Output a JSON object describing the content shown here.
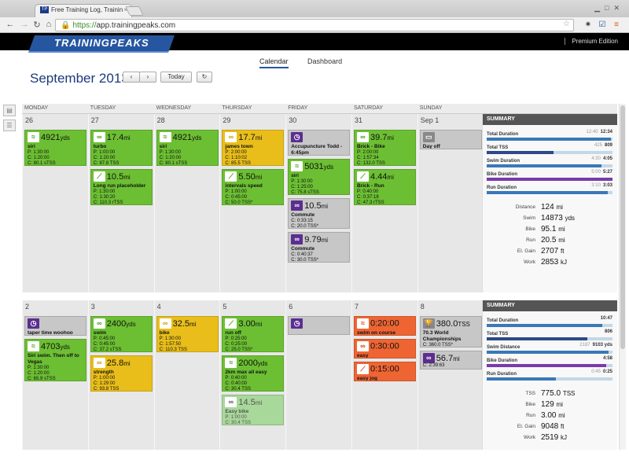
{
  "browser": {
    "tab_title": "Free Training Log, Trainin",
    "url_scheme": "https://",
    "url_host": "app.trainingpeaks.com"
  },
  "app": {
    "logo": "TRAININGPEAKS",
    "edition": "Premium Edition",
    "views": [
      "Calendar",
      "Dashboard"
    ],
    "month": "September",
    "year": "2013",
    "today_label": "Today"
  },
  "day_names": [
    "MONDAY",
    "TUESDAY",
    "WEDNESDAY",
    "THURSDAY",
    "FRIDAY",
    "SATURDAY",
    "SUNDAY"
  ],
  "weeks": [
    {
      "dates": [
        "26",
        "27",
        "28",
        "29",
        "30",
        "31",
        "Sep 1"
      ],
      "days": [
        [
          {
            "color": "green",
            "icon": "swim",
            "value": "4921",
            "unit": "yds",
            "title": "siri",
            "lines": [
              "P: 1:30:00",
              "C: 1:20:00",
              "C: 80.1 sTSS"
            ]
          }
        ],
        [
          {
            "color": "green",
            "icon": "bike",
            "value": "17.4",
            "unit": "mi",
            "title": "turbo",
            "lines": [
              "P: 1:00:00",
              "C: 1:20:00",
              "C: 87.8 TSS"
            ]
          },
          {
            "color": "green",
            "icon": "run",
            "value": "10.5",
            "unit": "mi",
            "title": "Long run placeholder",
            "lines": [
              "P: 1:30:00",
              "C: 1:30:20",
              "C: 110.3 rTSS"
            ]
          }
        ],
        [
          {
            "color": "green",
            "icon": "swim",
            "value": "4921",
            "unit": "yds",
            "title": "siri",
            "lines": [
              "P: 1:30:00",
              "C: 1:20:00",
              "C: 80.1 sTSS"
            ]
          }
        ],
        [
          {
            "color": "yellow",
            "icon": "bike",
            "value": "17.7",
            "unit": "mi",
            "title": "james town",
            "lines": [
              "P: 2:00:00",
              "C: 1:10:02",
              "C: 85.5 TSS"
            ]
          },
          {
            "color": "green",
            "icon": "run",
            "value": "5.50",
            "unit": "mi",
            "title": "intervals speed",
            "lines": [
              "P: 1:00:00",
              "C: 0:45:00",
              "C: 50.0 TSS*"
            ]
          }
        ],
        [
          {
            "color": "gray",
            "icon": "other",
            "value": "",
            "unit": "",
            "title": "Accupuncture Todd - 6:45pm",
            "lines": []
          },
          {
            "color": "green",
            "icon": "swim",
            "value": "5031",
            "unit": "yds",
            "title": "siri",
            "lines": [
              "P: 1:30:00",
              "C: 1:25:00",
              "C: 75.8 sTSS"
            ]
          },
          {
            "color": "gray",
            "icon": "commute",
            "value": "10.5",
            "unit": "mi",
            "title": "Commute",
            "lines": [
              "C: 0:33:15",
              "C: 20.0 TSS*"
            ]
          },
          {
            "color": "gray",
            "icon": "commute",
            "value": "9.79",
            "unit": "mi",
            "title": "Commute",
            "lines": [
              "C: 0:40:37",
              "C: 30.0 TSS*"
            ]
          }
        ],
        [
          {
            "color": "green",
            "icon": "bike",
            "value": "39.7",
            "unit": "mi",
            "title": "Brick - Bike",
            "lines": [
              "P: 2:00:00",
              "C: 1:57:34",
              "C: 132.0 TSS"
            ]
          },
          {
            "color": "green",
            "icon": "run",
            "value": "4.44",
            "unit": "mi",
            "title": "Brick - Run",
            "lines": [
              "P: 0:40:00",
              "C: 0:37:18",
              "C: 47.3 rTSS"
            ]
          }
        ],
        [
          {
            "color": "gray",
            "icon": "dayoff",
            "value": "",
            "unit": "",
            "title": "Day off",
            "lines": []
          }
        ]
      ],
      "summary": {
        "header": "SUMMARY",
        "rows": [
          {
            "label": "Total Duration",
            "sub": "12:40",
            "val": "12:34",
            "fill": 0.99,
            "color": "#3a78b8"
          },
          {
            "label": "Total TSS",
            "sub": "425",
            "val": "809",
            "fill": 0.53,
            "color": "#2c4a88"
          },
          {
            "label": "Swim Duration",
            "sub": "4:30",
            "val": "4:05",
            "fill": 0.91,
            "color": "#3a78b8"
          },
          {
            "label": "Bike Duration",
            "sub": "5:00",
            "val": "5:27",
            "fill": 1.0,
            "color": "#7a3aaa"
          },
          {
            "label": "Run Duration",
            "sub": "3:10",
            "val": "3:03",
            "fill": 0.96,
            "color": "#3a78b8"
          }
        ],
        "stats": [
          {
            "k": "Distance",
            "v": "124",
            "u": "mi"
          },
          {
            "k": "Swim",
            "v": "14873",
            "u": "yds"
          },
          {
            "k": "Bike",
            "v": "95.1",
            "u": "mi"
          },
          {
            "k": "Run",
            "v": "20.5",
            "u": "mi"
          },
          {
            "k": "El. Gain",
            "v": "2707",
            "u": "ft"
          },
          {
            "k": "Work",
            "v": "2853",
            "u": "kJ"
          }
        ]
      }
    },
    {
      "dates": [
        "2",
        "3",
        "4",
        "5",
        "6",
        "7",
        "8"
      ],
      "days": [
        [
          {
            "color": "gray",
            "icon": "other",
            "value": "",
            "unit": "",
            "title": "taper time woohoo",
            "lines": []
          },
          {
            "color": "green",
            "icon": "swim",
            "value": "4703",
            "unit": "yds",
            "title": "Siri swim. Then off to Vegas",
            "lines": [
              "P: 1:30:00",
              "C: 1:20:00",
              "C: 65.9 sTSS"
            ]
          }
        ],
        [
          {
            "color": "green",
            "icon": "bike",
            "value": "2400",
            "unit": "yds",
            "title": "swim",
            "lines": [
              "P: 0:45:00",
              "C: 0:45:00",
              "C: 37.2 sTSS"
            ]
          },
          {
            "color": "yellow",
            "icon": "bike",
            "value": "25.8",
            "unit": "mi",
            "title": "strength",
            "lines": [
              "P: 1:00:00",
              "C: 1:29:00",
              "C: 93.8 TSS"
            ]
          }
        ],
        [
          {
            "color": "yellow",
            "icon": "bike",
            "value": "32.5",
            "unit": "mi",
            "title": "bike",
            "lines": [
              "P: 1:30:00",
              "C: 1:57:50",
              "C: 110.3 TSS"
            ]
          }
        ],
        [
          {
            "color": "green",
            "icon": "run",
            "value": "3.00",
            "unit": "mi",
            "title": "run off",
            "lines": [
              "P: 0:25:00",
              "C: 0:25:00",
              "C: 25.0 TSS*"
            ]
          },
          {
            "color": "green",
            "icon": "swim",
            "value": "2000",
            "unit": "yds",
            "title": "2km max all easy",
            "lines": [
              "P: 0:40:00",
              "C: 0:40:00",
              "C: 30.4 TSS"
            ]
          },
          {
            "color": "fadegreen",
            "icon": "bike",
            "value": "14.5",
            "unit": "mi",
            "title": "Easy bike",
            "lines": [
              "P: 1:00:00",
              "C: 30.4 TSS"
            ]
          }
        ],
        [
          {
            "color": "gray",
            "icon": "other",
            "value": "",
            "unit": "",
            "title": "",
            "lines": []
          }
        ],
        [
          {
            "color": "orange",
            "icon": "swim",
            "value": "0:20:00",
            "unit": "",
            "title": "swim on course",
            "lines": []
          },
          {
            "color": "orange",
            "icon": "bike",
            "value": "0:30:00",
            "unit": "",
            "title": "easy",
            "lines": []
          },
          {
            "color": "orange",
            "icon": "run",
            "value": "0:15:00",
            "unit": "",
            "title": "easy jog",
            "lines": []
          }
        ],
        [
          {
            "color": "gray",
            "icon": "race",
            "value": "380.0",
            "unit": "TSS",
            "title": "70.3 World Championships",
            "lines": [
              "C: 360.0 TSS*"
            ]
          },
          {
            "color": "gray",
            "icon": "commute",
            "value": "56.7",
            "unit": "mi",
            "title": "",
            "lines": [
              "C: 2:39:63"
            ]
          }
        ]
      ],
      "summary": {
        "header": "SUMMARY",
        "rows": [
          {
            "label": "Total Duration",
            "sub": "",
            "val": "10:47",
            "fill": 0.92,
            "color": "#3a78b8"
          },
          {
            "label": "Total TSS",
            "sub": "",
            "val": "806",
            "fill": 0.8,
            "color": "#2c4a88"
          },
          {
            "label": "Swim Distance",
            "sub": "2187",
            "val": "9103 yds",
            "fill": 0.97,
            "color": "#3a78b8"
          },
          {
            "label": "Bike Duration",
            "sub": "",
            "val": "4:58",
            "fill": 0.95,
            "color": "#7a3aaa"
          },
          {
            "label": "Run Duration",
            "sub": "0:45",
            "val": "0:25",
            "fill": 0.55,
            "color": "#3a78b8"
          }
        ],
        "stats": [
          {
            "k": "TSS",
            "v": "775.0",
            "u": "TSS"
          },
          {
            "k": "Bike",
            "v": "129",
            "u": "mi"
          },
          {
            "k": "Run",
            "v": "3.00",
            "u": "mi"
          },
          {
            "k": "El. Gain",
            "v": "9048",
            "u": "ft"
          },
          {
            "k": "Work",
            "v": "2519",
            "u": "kJ"
          }
        ]
      }
    }
  ]
}
